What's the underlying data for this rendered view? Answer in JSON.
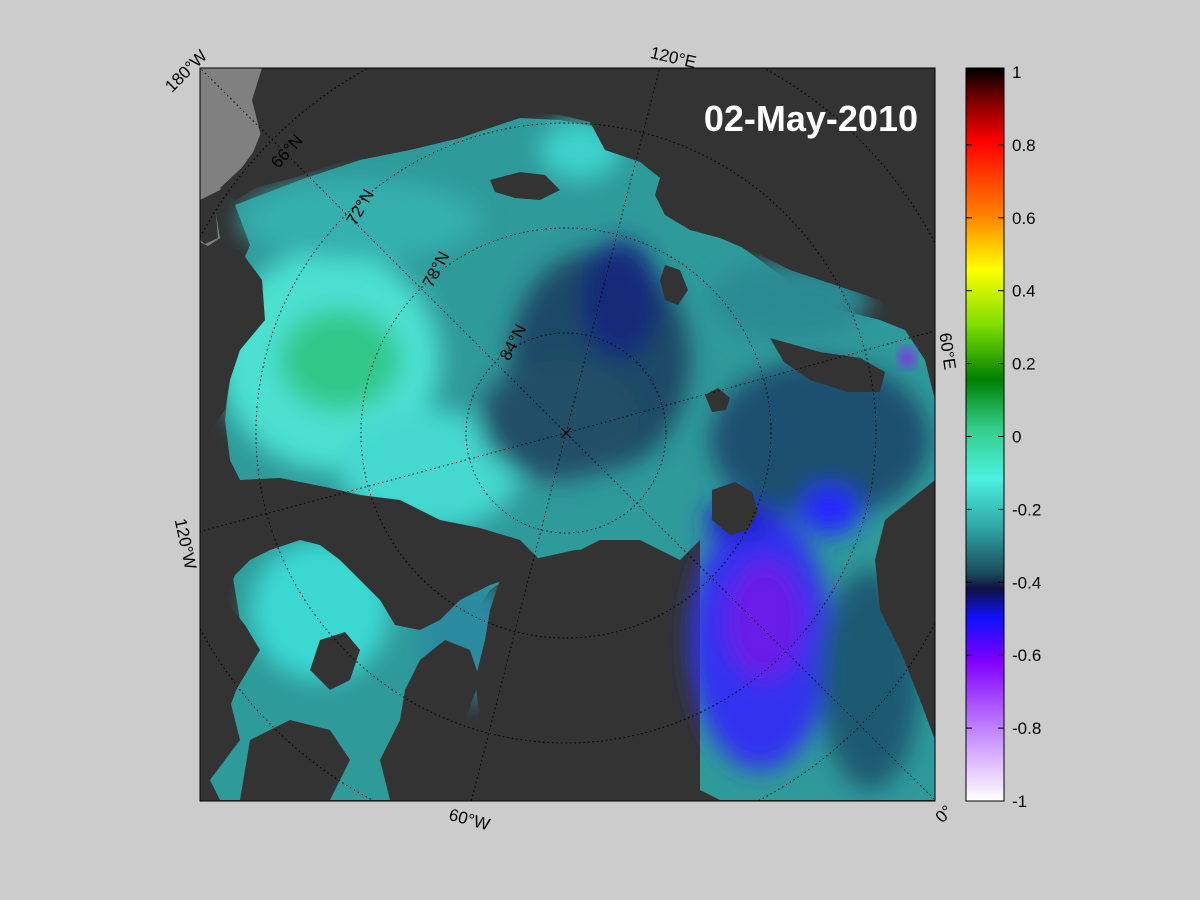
{
  "map": {
    "date": "02-May-2010",
    "projection": "north polar stereographic",
    "longitude_labels": [
      "180°W",
      "120°E",
      "60°E",
      "0°",
      "60°W",
      "120°W"
    ],
    "latitude_labels": [
      "66°N",
      "72°N",
      "78°N",
      "84°N"
    ],
    "colors": {
      "background": "#cccccc",
      "land": "#333333",
      "land_unobserved": "#808080",
      "grid": "#000000"
    }
  },
  "colorbar": {
    "min": -1,
    "max": 1,
    "ticks": [
      "1",
      "0.8",
      "0.6",
      "0.4",
      "0.2",
      "0",
      "-0.2",
      "-0.4",
      "-0.6",
      "-0.8",
      "-1"
    ],
    "stops": [
      {
        "value": 1.0,
        "color": "#000000"
      },
      {
        "value": 0.9,
        "color": "#8b0000"
      },
      {
        "value": 0.8,
        "color": "#ff0000"
      },
      {
        "value": 0.6,
        "color": "#ff8000"
      },
      {
        "value": 0.45,
        "color": "#ffff00"
      },
      {
        "value": 0.3,
        "color": "#7fdf00"
      },
      {
        "value": 0.15,
        "color": "#008000"
      },
      {
        "value": 0.02,
        "color": "#33cc88"
      },
      {
        "value": -0.12,
        "color": "#4cf0e0"
      },
      {
        "value": -0.25,
        "color": "#30a8a8"
      },
      {
        "value": -0.38,
        "color": "#1a4a5a"
      },
      {
        "value": -0.42,
        "color": "#101040"
      },
      {
        "value": -0.5,
        "color": "#1010ff"
      },
      {
        "value": -0.62,
        "color": "#8000ff"
      },
      {
        "value": -0.8,
        "color": "#c080ff"
      },
      {
        "value": -1.0,
        "color": "#ffffff"
      }
    ]
  }
}
